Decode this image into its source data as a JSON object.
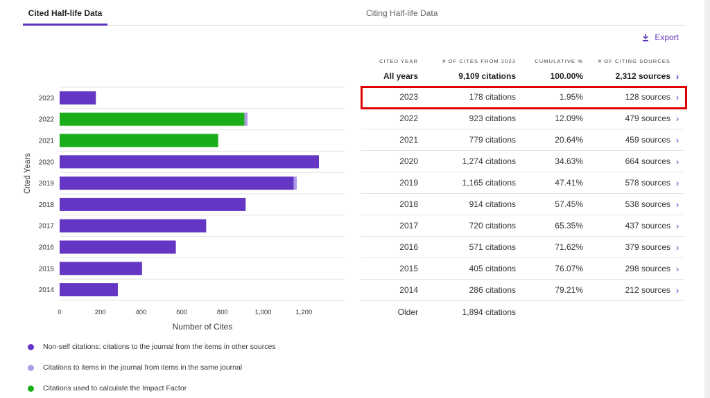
{
  "tabs": {
    "cited": "Cited Half-life Data",
    "citing": "Citing Half-life Data"
  },
  "export_label": "Export",
  "colors": {
    "accent": "#5e33bf",
    "non_self": "#6336c4",
    "self": "#b19ae6",
    "impact": "#1aaf1a",
    "highlight": "#e00000"
  },
  "legend": [
    {
      "label": "Non-self citations: citations to the journal from the items in other sources",
      "color": "#6336c4"
    },
    {
      "label": "Citations to items in the journal from items in the same journal",
      "color": "#b19ae6"
    },
    {
      "label": "Citations used to calculate the Impact Factor",
      "color": "#1aaf1a"
    }
  ],
  "chart_data": {
    "type": "bar",
    "orientation": "horizontal",
    "xlabel": "Number of Cites",
    "ylabel": "Cited Years",
    "xlim": [
      0,
      1400
    ],
    "xticks": [
      0,
      200,
      400,
      600,
      800,
      1000,
      1200
    ],
    "xtick_labels": [
      "0",
      "200",
      "400",
      "600",
      "800",
      "1,000",
      "1,200"
    ],
    "grid": true,
    "categories": [
      "2023",
      "2022",
      "2021",
      "2020",
      "2019",
      "2018",
      "2017",
      "2016",
      "2015",
      "2014"
    ],
    "series": [
      {
        "values": [
          178,
          0,
          0,
          1274,
          1150,
          914,
          720,
          571,
          405,
          286
        ]
      },
      {
        "values": [
          0,
          0,
          0,
          0,
          15,
          0,
          0,
          0,
          0,
          0
        ]
      },
      {
        "values": [
          0,
          908,
          779,
          0,
          0,
          0,
          0,
          0,
          0,
          0
        ]
      },
      {
        "values": [
          0,
          15,
          0,
          0,
          0,
          0,
          0,
          0,
          0,
          0
        ]
      }
    ]
  },
  "table": {
    "headers": [
      "CITED YEAR",
      "# OF CITES FROM 2023",
      "CUMULATIVE %",
      "# OF CITING SOURCES"
    ],
    "summary": {
      "year": "All years",
      "cites": "9,109 citations",
      "cum": "100.00%",
      "sources": "2,312 sources"
    },
    "rows": [
      {
        "year": "2023",
        "cites": "178 citations",
        "cum": "1.95%",
        "sources": "128 sources"
      },
      {
        "year": "2022",
        "cites": "923 citations",
        "cum": "12.09%",
        "sources": "479 sources"
      },
      {
        "year": "2021",
        "cites": "779 citations",
        "cum": "20.64%",
        "sources": "459 sources"
      },
      {
        "year": "2020",
        "cites": "1,274 citations",
        "cum": "34.63%",
        "sources": "664 sources"
      },
      {
        "year": "2019",
        "cites": "1,165 citations",
        "cum": "47.41%",
        "sources": "578 sources"
      },
      {
        "year": "2018",
        "cites": "914 citations",
        "cum": "57.45%",
        "sources": "538 sources"
      },
      {
        "year": "2017",
        "cites": "720 citations",
        "cum": "65.35%",
        "sources": "437 sources"
      },
      {
        "year": "2016",
        "cites": "571 citations",
        "cum": "71.62%",
        "sources": "379 sources"
      },
      {
        "year": "2015",
        "cites": "405 citations",
        "cum": "76.07%",
        "sources": "298 sources"
      },
      {
        "year": "2014",
        "cites": "286 citations",
        "cum": "79.21%",
        "sources": "212 sources"
      }
    ],
    "older": {
      "year": "Older",
      "cites": "1,894 citations"
    }
  }
}
